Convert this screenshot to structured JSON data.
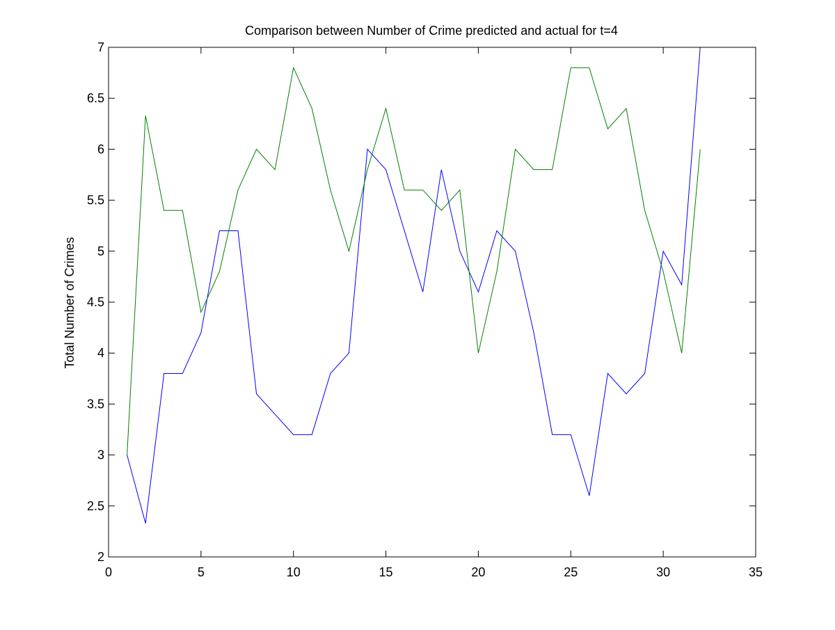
{
  "chart_data": {
    "type": "line",
    "title": "Comparison between Number of Crime predicted and actual for t=4",
    "xlabel": "",
    "ylabel": "Total Number of Crimes",
    "xlim": [
      0,
      35
    ],
    "ylim": [
      2,
      7
    ],
    "xticks": [
      0,
      5,
      10,
      15,
      20,
      25,
      30,
      35
    ],
    "yticks": [
      2,
      2.5,
      3,
      3.5,
      4,
      4.5,
      5,
      5.5,
      6,
      6.5,
      7
    ],
    "grid": false,
    "legend": "none",
    "x": [
      1,
      2,
      3,
      4,
      5,
      6,
      7,
      8,
      9,
      10,
      11,
      12,
      13,
      14,
      15,
      16,
      17,
      18,
      19,
      20,
      21,
      22,
      23,
      24,
      25,
      26,
      27,
      28,
      29,
      30,
      31,
      32
    ],
    "series": [
      {
        "color": "#0000ff",
        "values": [
          3.0,
          2.33,
          3.8,
          3.8,
          4.2,
          5.2,
          5.2,
          3.6,
          3.4,
          3.2,
          3.2,
          3.8,
          4.0,
          6.0,
          5.8,
          5.2,
          4.6,
          5.8,
          5.0,
          4.6,
          5.2,
          5.0,
          4.2,
          3.2,
          3.2,
          2.6,
          3.8,
          3.6,
          3.8,
          5.0,
          4.67,
          7.0
        ]
      },
      {
        "color": "#008000",
        "values": [
          3.0,
          6.33,
          5.4,
          5.4,
          4.4,
          4.8,
          5.6,
          6.0,
          5.8,
          6.8,
          6.4,
          5.6,
          5.0,
          5.8,
          6.4,
          5.6,
          5.6,
          5.4,
          5.6,
          4.0,
          4.8,
          6.0,
          5.8,
          5.8,
          6.8,
          6.8,
          6.2,
          6.4,
          5.4,
          4.8,
          4.0,
          6.0
        ]
      }
    ]
  }
}
